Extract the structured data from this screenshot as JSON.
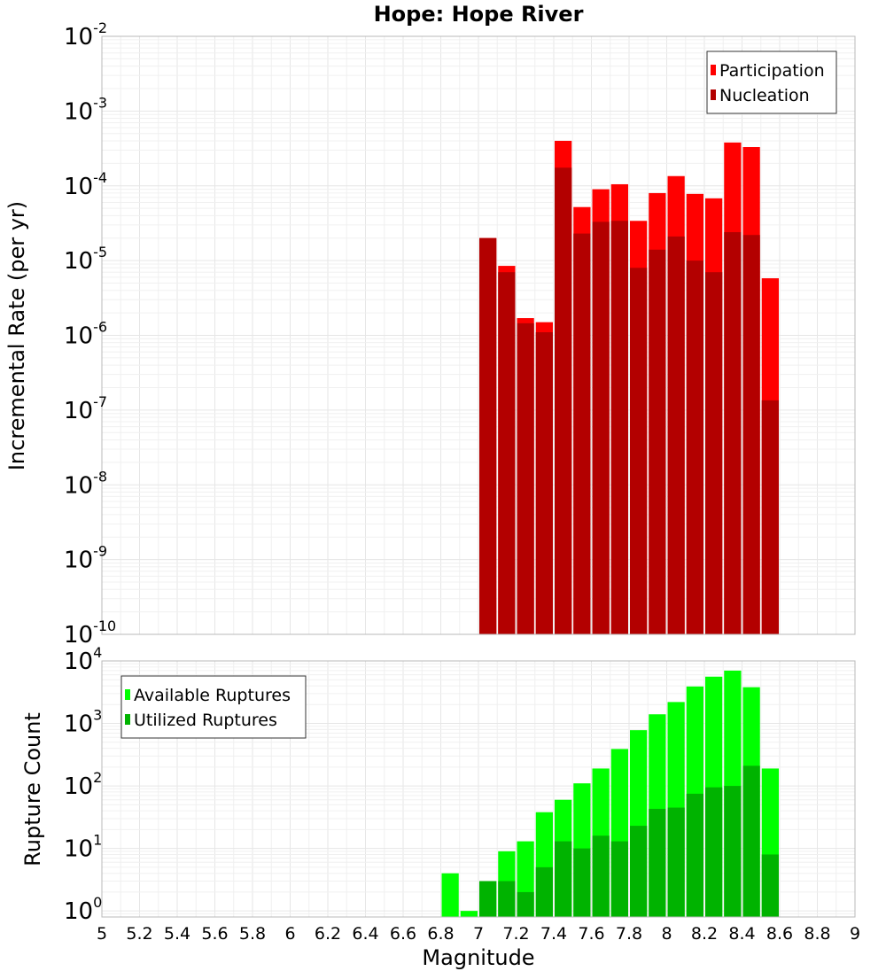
{
  "chart_data": [
    {
      "type": "bar",
      "title": "Hope: Hope River",
      "ylabel": "Incremental Rate (per yr)",
      "xlabel": "",
      "y_scale": "log",
      "ylim": [
        1e-10,
        0.01
      ],
      "xlim": [
        5,
        9
      ],
      "bin_width": 0.1,
      "legend_position": "top-right",
      "y_ticks": [
        {
          "base": "10",
          "exp": "-10"
        },
        {
          "base": "10",
          "exp": "-9"
        },
        {
          "base": "10",
          "exp": "-8"
        },
        {
          "base": "10",
          "exp": "-7"
        },
        {
          "base": "10",
          "exp": "-6"
        },
        {
          "base": "10",
          "exp": "-5"
        },
        {
          "base": "10",
          "exp": "-4"
        },
        {
          "base": "10",
          "exp": "-3"
        },
        {
          "base": "10",
          "exp": "-2"
        }
      ],
      "x": [
        7.05,
        7.15,
        7.25,
        7.35,
        7.45,
        7.55,
        7.65,
        7.75,
        7.85,
        7.95,
        8.05,
        8.15,
        8.25,
        8.35,
        8.45,
        8.55
      ],
      "series": [
        {
          "name": "Participation",
          "color": "#ff0000",
          "values": [
            2e-05,
            8.5e-06,
            1.7e-06,
            1.5e-06,
            0.0004,
            5.2e-05,
            9e-05,
            0.000105,
            3.4e-05,
            8e-05,
            0.000135,
            7.8e-05,
            6.8e-05,
            0.00038,
            0.00033,
            5.8e-06
          ]
        },
        {
          "name": "Nucleation",
          "color": "#b30000",
          "values": [
            2e-05,
            7e-06,
            1.45e-06,
            1.1e-06,
            0.000175,
            2.3e-05,
            3.3e-05,
            3.4e-05,
            8e-06,
            1.4e-05,
            2.1e-05,
            1e-05,
            7e-06,
            2.4e-05,
            2.2e-05,
            1.35e-07
          ]
        }
      ]
    },
    {
      "type": "bar",
      "title": "",
      "ylabel": "Rupture Count",
      "xlabel": "Magnitude",
      "y_scale": "log",
      "ylim": [
        0.8,
        10000
      ],
      "xlim": [
        5,
        9
      ],
      "bin_width": 0.1,
      "legend_position": "top-left",
      "x_tick_labels": [
        "5",
        "5.2",
        "5.4",
        "5.6",
        "5.8",
        "6",
        "6.2",
        "6.4",
        "6.6",
        "6.8",
        "7",
        "7.2",
        "7.4",
        "7.6",
        "7.8",
        "8",
        "8.2",
        "8.4",
        "8.6",
        "8.8",
        "9"
      ],
      "y_ticks": [
        {
          "base": "10",
          "exp": "0"
        },
        {
          "base": "10",
          "exp": "1"
        },
        {
          "base": "10",
          "exp": "2"
        },
        {
          "base": "10",
          "exp": "3"
        },
        {
          "base": "10",
          "exp": "4"
        }
      ],
      "x": [
        6.85,
        6.95,
        7.05,
        7.15,
        7.25,
        7.35,
        7.45,
        7.55,
        7.65,
        7.75,
        7.85,
        7.95,
        8.05,
        8.15,
        8.25,
        8.35,
        8.45,
        8.55
      ],
      "series": [
        {
          "name": "Available Ruptures",
          "color": "#00ff00",
          "values": [
            4,
            1,
            3,
            9,
            13,
            38,
            60,
            110,
            190,
            390,
            780,
            1400,
            2200,
            3900,
            5600,
            7000,
            3800,
            190
          ]
        },
        {
          "name": "Utilized Ruptures",
          "color": "#00b300",
          "values": [
            0,
            0,
            3,
            3,
            2,
            5,
            13,
            10,
            16,
            13,
            23,
            43,
            45,
            75,
            95,
            100,
            210,
            8
          ]
        }
      ]
    }
  ]
}
